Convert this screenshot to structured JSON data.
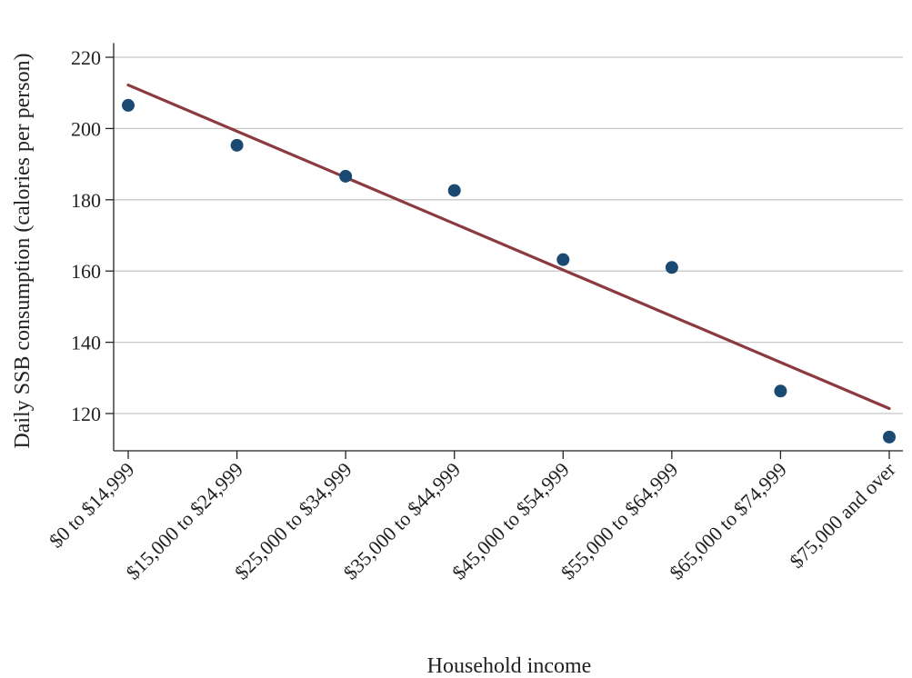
{
  "chart_data": {
    "type": "scatter",
    "xlabel": "Household income",
    "ylabel": "Daily SSB consumption (calories per person)",
    "categories": [
      "$0 to $14,999",
      "$15,000 to $24,999",
      "$25,000 to $34,999",
      "$35,000 to $44,999",
      "$45,000 to $54,999",
      "$55,000 to $64,999",
      "$65,000 to $74,999",
      "$75,000 and over"
    ],
    "series": [
      {
        "values": [
          206.5,
          195.3,
          186.6,
          182.6,
          163.2,
          161.0,
          126.3,
          113.4
        ]
      }
    ],
    "fit_line": {
      "start": 212.2,
      "end": 121.4
    },
    "yticks": [
      120,
      140,
      160,
      180,
      200,
      220
    ],
    "ylim": [
      110,
      224
    ],
    "grid": true,
    "colors": {
      "points": "#1a4a72",
      "line": "#8b3a3f",
      "grid": "#c8c8c8",
      "axis": "#222222"
    }
  }
}
